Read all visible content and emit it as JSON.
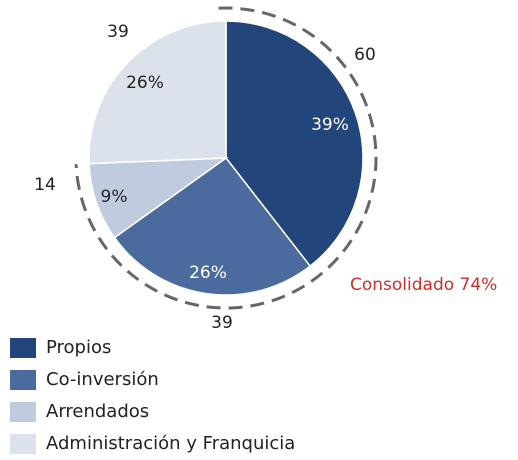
{
  "chart_data": {
    "type": "pie",
    "categories": [
      "Propios",
      "Co-inversión",
      "Arrendados",
      "Administración y Franquicia"
    ],
    "values": [
      60,
      39,
      14,
      39
    ],
    "percent_labels": [
      "39%",
      "26%",
      "9%",
      "26%"
    ],
    "colors": [
      "#22467b",
      "#4b6b9e",
      "#c1cbdf",
      "#dce2ec"
    ],
    "annotation": "Consolidado 74%",
    "annotation_color": "#c9302c",
    "legend": "bottom-left"
  }
}
